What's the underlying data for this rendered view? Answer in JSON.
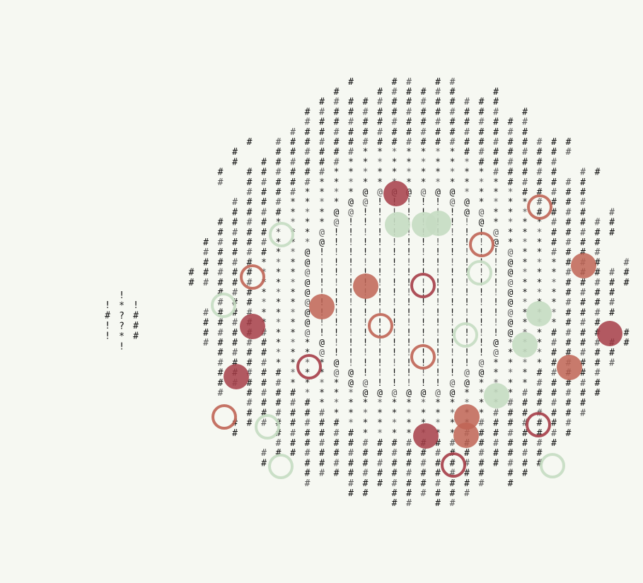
{
  "glyphs": {
    "outer": "#",
    "mid": "*",
    "inner": "@",
    "core": "!",
    "legend": [
      "!",
      "#",
      "*",
      "?",
      "!"
    ]
  },
  "colors": {
    "background": "#f6f8f2",
    "glyph_dark": "#111111",
    "glyph_light": "#555555",
    "marker_red": "#a63d48",
    "marker_salmon": "#c06455",
    "marker_green": "#c5dcc2"
  },
  "markers": [
    {
      "style": "filled",
      "color": "red"
    },
    {
      "style": "ring",
      "color": "red"
    },
    {
      "style": "ring",
      "color": "green"
    },
    {
      "style": "filled",
      "color": "green"
    }
  ]
}
